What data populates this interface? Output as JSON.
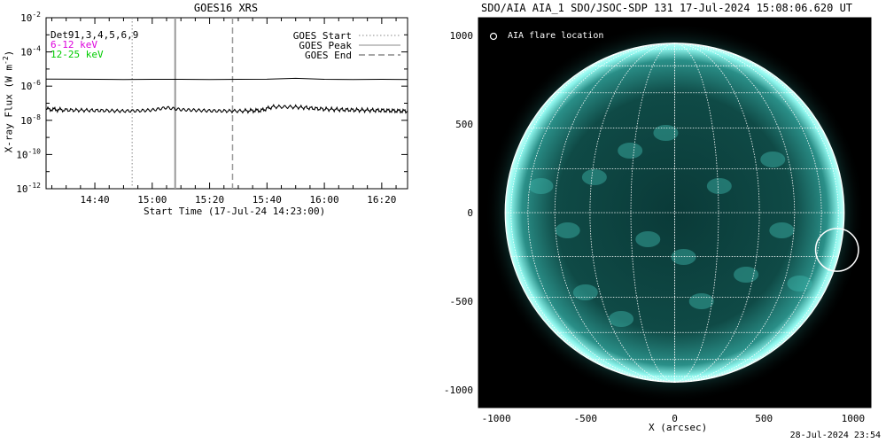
{
  "footer_timestamp": "28-Jul-2024 23:54",
  "chart_data": [
    {
      "type": "line",
      "title": "GOES16 XRS",
      "xlabel": "Start Time (17-Jul-24 14:23:00)",
      "ylabel": "X-ray Flux (W m",
      "ylabel_sup": "-2",
      "ylabel_close": ")",
      "y_scale": "log",
      "ylim": [
        1e-12,
        0.01
      ],
      "x_range": [
        "14:23",
        "16:29"
      ],
      "xticks": [
        "14:40",
        "15:00",
        "15:20",
        "15:40",
        "16:00",
        "16:20"
      ],
      "yticks": [
        {
          "base": "10",
          "exp": "-12",
          "value": 1e-12
        },
        {
          "base": "10",
          "exp": "-10",
          "value": 1e-10
        },
        {
          "base": "10",
          "exp": "-8",
          "value": 1e-08
        },
        {
          "base": "10",
          "exp": "-6",
          "value": 1e-06
        },
        {
          "base": "10",
          "exp": "-4",
          "value": 0.0001
        },
        {
          "base": "10",
          "exp": "-2",
          "value": 0.01
        }
      ],
      "channel_labels": [
        {
          "text": "Det91,3,4,5,6,9",
          "color": "#000000"
        },
        {
          "text": "6-12 keV",
          "color": "#dd00dd"
        },
        {
          "text": "12-25 keV",
          "color": "#00cc00"
        }
      ],
      "legend": [
        {
          "label": "GOES Start",
          "style": "dotted"
        },
        {
          "label": "GOES Peak",
          "style": "solid"
        },
        {
          "label": "GOES End",
          "style": "dashed"
        }
      ],
      "legend_position": "top-right",
      "event_lines": {
        "start": "14:53",
        "peak": "15:08",
        "end": "15:28"
      },
      "series": [
        {
          "x": [
            "14:23",
            "14:35",
            "14:50",
            "15:00",
            "15:10",
            "15:20",
            "15:30",
            "15:40",
            "15:50",
            "16:00",
            "16:10",
            "16:20",
            "16:29"
          ],
          "values": [
            2.6e-06,
            2.55e-06,
            2.45e-06,
            2.5e-06,
            2.5e-06,
            2.45e-06,
            2.5e-06,
            2.55e-06,
            2.85e-06,
            2.5e-06,
            2.45e-06,
            2.5e-06,
            2.45e-06
          ]
        },
        {
          "x": [
            "14:23",
            "14:30",
            "14:40",
            "14:50",
            "14:55",
            "15:00",
            "15:05",
            "15:10",
            "15:20",
            "15:30",
            "15:38",
            "15:42",
            "15:50",
            "16:00",
            "16:10",
            "16:20",
            "16:29"
          ],
          "values": [
            4.5e-08,
            4e-08,
            3.8e-08,
            3.5e-08,
            3.6e-08,
            4e-08,
            5.5e-08,
            4.2e-08,
            3.6e-08,
            3.5e-08,
            3.8e-08,
            6.2e-08,
            6e-08,
            4.5e-08,
            4e-08,
            3.8e-08,
            3.4e-08
          ]
        }
      ]
    },
    {
      "type": "image",
      "title": "SDO/AIA AIA_1 SDO/JSOC-SDP 131 17-Jul-2024 15:08:06.620 UT",
      "xlabel": "X (arcsec)",
      "xlim": [
        -1100,
        1100
      ],
      "ylim": [
        -1100,
        1100
      ],
      "xticks": [
        "-1000",
        "-500",
        "0",
        "500",
        "1000"
      ],
      "yticks": [
        "1000",
        "500",
        "0",
        "-500",
        "-1000"
      ],
      "annotation": "AIA flare location",
      "flare_location": {
        "x": 910,
        "y": -210
      },
      "colors": {
        "background": "#000000",
        "disk": "#0f4a46",
        "limb": "#8ff7ee",
        "grid": "#ffffff"
      }
    }
  ]
}
